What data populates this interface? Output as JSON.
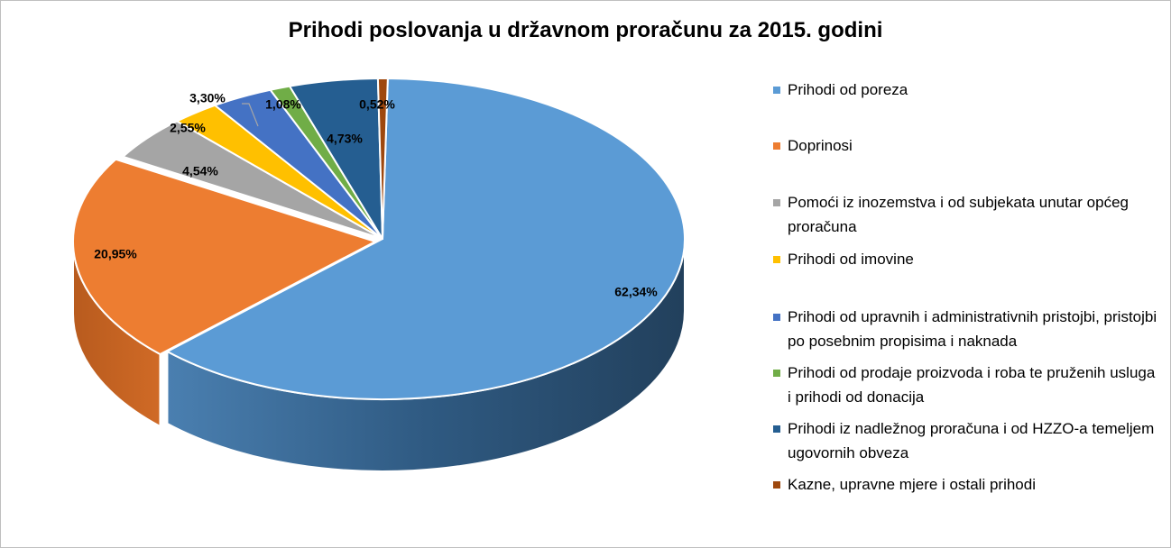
{
  "chart_data": {
    "type": "pie",
    "title": "Prihodi poslovanja u državnom proračunu za 2015. godini",
    "legend_position": "right",
    "series": [
      {
        "name": "Prihodi od poreza",
        "value": 62.34,
        "label": "62,34%",
        "color": "#5B9BD5",
        "side_color": "#3a6c9c"
      },
      {
        "name": "Doprinosi",
        "value": 20.95,
        "label": "20,95%",
        "color": "#ED7D31",
        "side_color": "#b85b1e"
      },
      {
        "name": "Pomoći iz inozemstva i od subjekata unutar općeg proračuna",
        "value": 4.54,
        "label": "4,54%",
        "color": "#A5A5A5",
        "side_color": "#7a7a7a"
      },
      {
        "name": "Prihodi od imovine",
        "value": 2.55,
        "label": "2,55%",
        "color": "#FFC000",
        "side_color": "#c49300"
      },
      {
        "name": "Prihodi od upravnih i administrativnih pristojbi, pristojbi po posebnim propisima i naknada",
        "value": 3.3,
        "label": "3,30%",
        "color": "#4472C4",
        "side_color": "#2e4f8a"
      },
      {
        "name": "Prihodi od prodaje proizvoda i roba te pruženih usluga i prihodi od donacija",
        "value": 1.08,
        "label": "1,08%",
        "color": "#70AD47",
        "side_color": "#4f7a32"
      },
      {
        "name": "Prihodi iz nadležnog proračuna i od HZZO-a temeljem ugovornih obveza",
        "value": 4.73,
        "label": "4,73%",
        "color": "#255E91",
        "side_color": "#183e60"
      },
      {
        "name": "Kazne, upravne mjere i ostali prihodi",
        "value": 0.52,
        "label": "0,52%",
        "color": "#9E480E",
        "side_color": "#6b3009"
      }
    ]
  }
}
